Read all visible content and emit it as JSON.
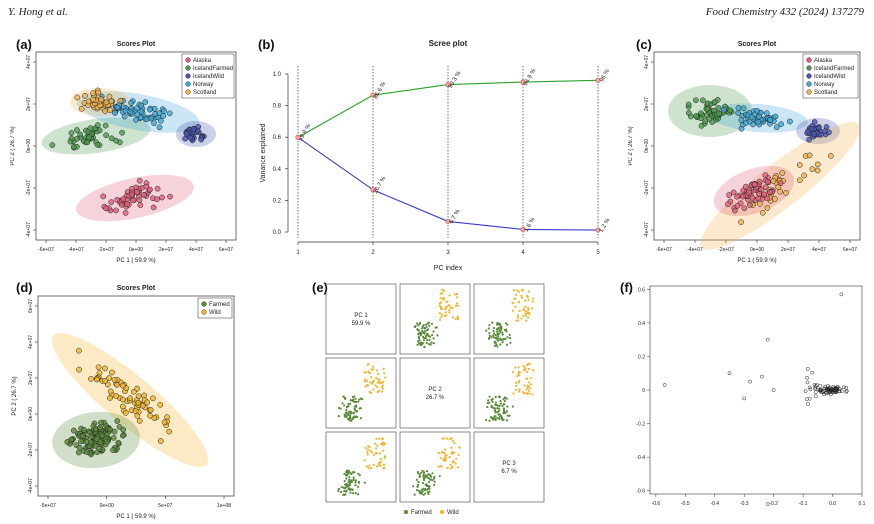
{
  "header": {
    "authors": "Y. Hong et al.",
    "journal": "Food Chemistry 432 (2024) 137279"
  },
  "panels": {
    "a": {
      "label": "(a)",
      "title": "Scores Plot",
      "xlabel": "PC 1 ( 59.9 %)",
      "ylabel": "PC 2 ( 26.7 %)",
      "xticks": [
        "-6e+07",
        "-4e+07",
        "-2e+07",
        "0e+00",
        "2e+07",
        "4e+07",
        "6e+07"
      ],
      "yticks": [
        "4e+07",
        "2e+07",
        "0e+00",
        "-2e+07",
        "-4e+07"
      ],
      "legend": [
        "Alaska",
        "IcelandFarmed",
        "IcelandWild",
        "Norway",
        "Scotland"
      ]
    },
    "b": {
      "label": "(b)"
    },
    "c": {
      "label": "(c)",
      "title": "Scores Plot",
      "xlabel": "PC 1 ( 59.9 %)",
      "ylabel": "PC 2 ( 26.7 %)",
      "xticks": [
        "-6e+07",
        "-4e+07",
        "-2e+07",
        "0e+00",
        "2e+07",
        "4e+07",
        "6e+07"
      ],
      "yticks": [
        "4e+07",
        "2e+07",
        "0e+00",
        "-2e+07",
        "-4e+07"
      ],
      "legend": [
        "Alaska",
        "IcelandFarmed",
        "IcelandWild",
        "Norway",
        "Scotland"
      ]
    },
    "d": {
      "label": "(d)",
      "title": "Scores Plot",
      "xlabel": "PC 1 ( 59.9 %)",
      "ylabel": "PC 2 ( 26.7 %)",
      "xticks": [
        "-5e+07",
        "0e+00",
        "5e+07",
        "1e+08"
      ],
      "yticks": [
        "6e+07",
        "4e+07",
        "2e+07",
        "0e+00",
        "-2e+07",
        "-4e+07"
      ],
      "legend": [
        "Farmed",
        "Wild"
      ]
    },
    "e": {
      "label": "(e)",
      "diag": [
        [
          "PC 1",
          "59.9 %"
        ],
        [
          "PC 2",
          "26.7 %"
        ],
        [
          "PC 3",
          "6.7 %"
        ]
      ],
      "legend": [
        "Farmed",
        "Wild"
      ]
    },
    "f": {
      "label": "(f)",
      "xticks": [
        "-0.6",
        "-0.5",
        "-0.4",
        "-0.3",
        "-0.2",
        "-0.1",
        "0.0",
        "0.1"
      ],
      "yticks": [
        "0.6",
        "0.4",
        "0.2",
        "0",
        "-0.2",
        "-0.4",
        "-0.6"
      ]
    }
  },
  "colors": {
    "Alaska": "#e0607a",
    "IcelandFarmed": "#4e9a4e",
    "IcelandWild": "#4b55b0",
    "Norway": "#3fa7d6",
    "Scotland": "#f2b34d",
    "Farmed": "#5a8a3a",
    "Wild": "#f0b429",
    "pc_cum": "#2ca02c",
    "pc_ind": "#3b3bcc"
  },
  "chart_data": [
    {
      "type": "line",
      "panel": "b",
      "title": "Scree plot",
      "xlabel": "PC index",
      "ylabel": "Variance explained",
      "x": [
        1,
        2,
        3,
        4,
        5
      ],
      "xlim": [
        1,
        5
      ],
      "ylim": [
        0,
        1.0
      ],
      "yticks": [
        0,
        0.2,
        0.4,
        0.6,
        0.8,
        1.0
      ],
      "series": [
        {
          "values": [
            0.599,
            0.866,
            0.933,
            0.949,
            0.96
          ],
          "labels": [
            "59.9 %",
            "86.6 %",
            "93.3 %",
            "94.9 %",
            "96 %"
          ]
        },
        {
          "values": [
            0.599,
            0.267,
            0.067,
            0.016,
            0.012
          ],
          "labels": [
            "",
            "26.7 %",
            "6.7 %",
            "1.6 %",
            "1.2 %"
          ]
        }
      ]
    }
  ]
}
